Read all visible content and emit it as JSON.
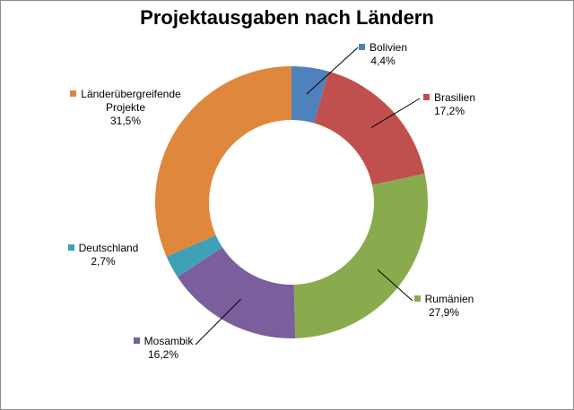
{
  "chart_data": {
    "type": "donut",
    "title": "Projektausgaben nach Ländern",
    "series": [
      {
        "name": "Bolivien",
        "label": "Bolivien",
        "value_label": "4,4%",
        "value": 4.4,
        "color": "#4f81bd"
      },
      {
        "name": "Brasilien",
        "label": "Brasilien",
        "value_label": "17,2%",
        "value": 17.2,
        "color": "#c0504d"
      },
      {
        "name": "Rumänien",
        "label": "Rumänien",
        "value_label": "27,9%",
        "value": 27.9,
        "color": "#8aaa4e"
      },
      {
        "name": "Mosambik",
        "label": "Mosambik",
        "value_label": "16,2%",
        "value": 16.2,
        "color": "#7b5e9c"
      },
      {
        "name": "Deutschland",
        "label": "Deutschland",
        "value_label": "2,7%",
        "value": 2.7,
        "color": "#3fa0b6"
      },
      {
        "name": "Länderübergreifende Projekte",
        "label": "Länderübergreifende Projekte",
        "value_label": "31,5%",
        "value": 31.5,
        "color": "#e0873e"
      }
    ],
    "legend": "none",
    "start_angle": "12 o'clock",
    "direction": "clockwise"
  }
}
